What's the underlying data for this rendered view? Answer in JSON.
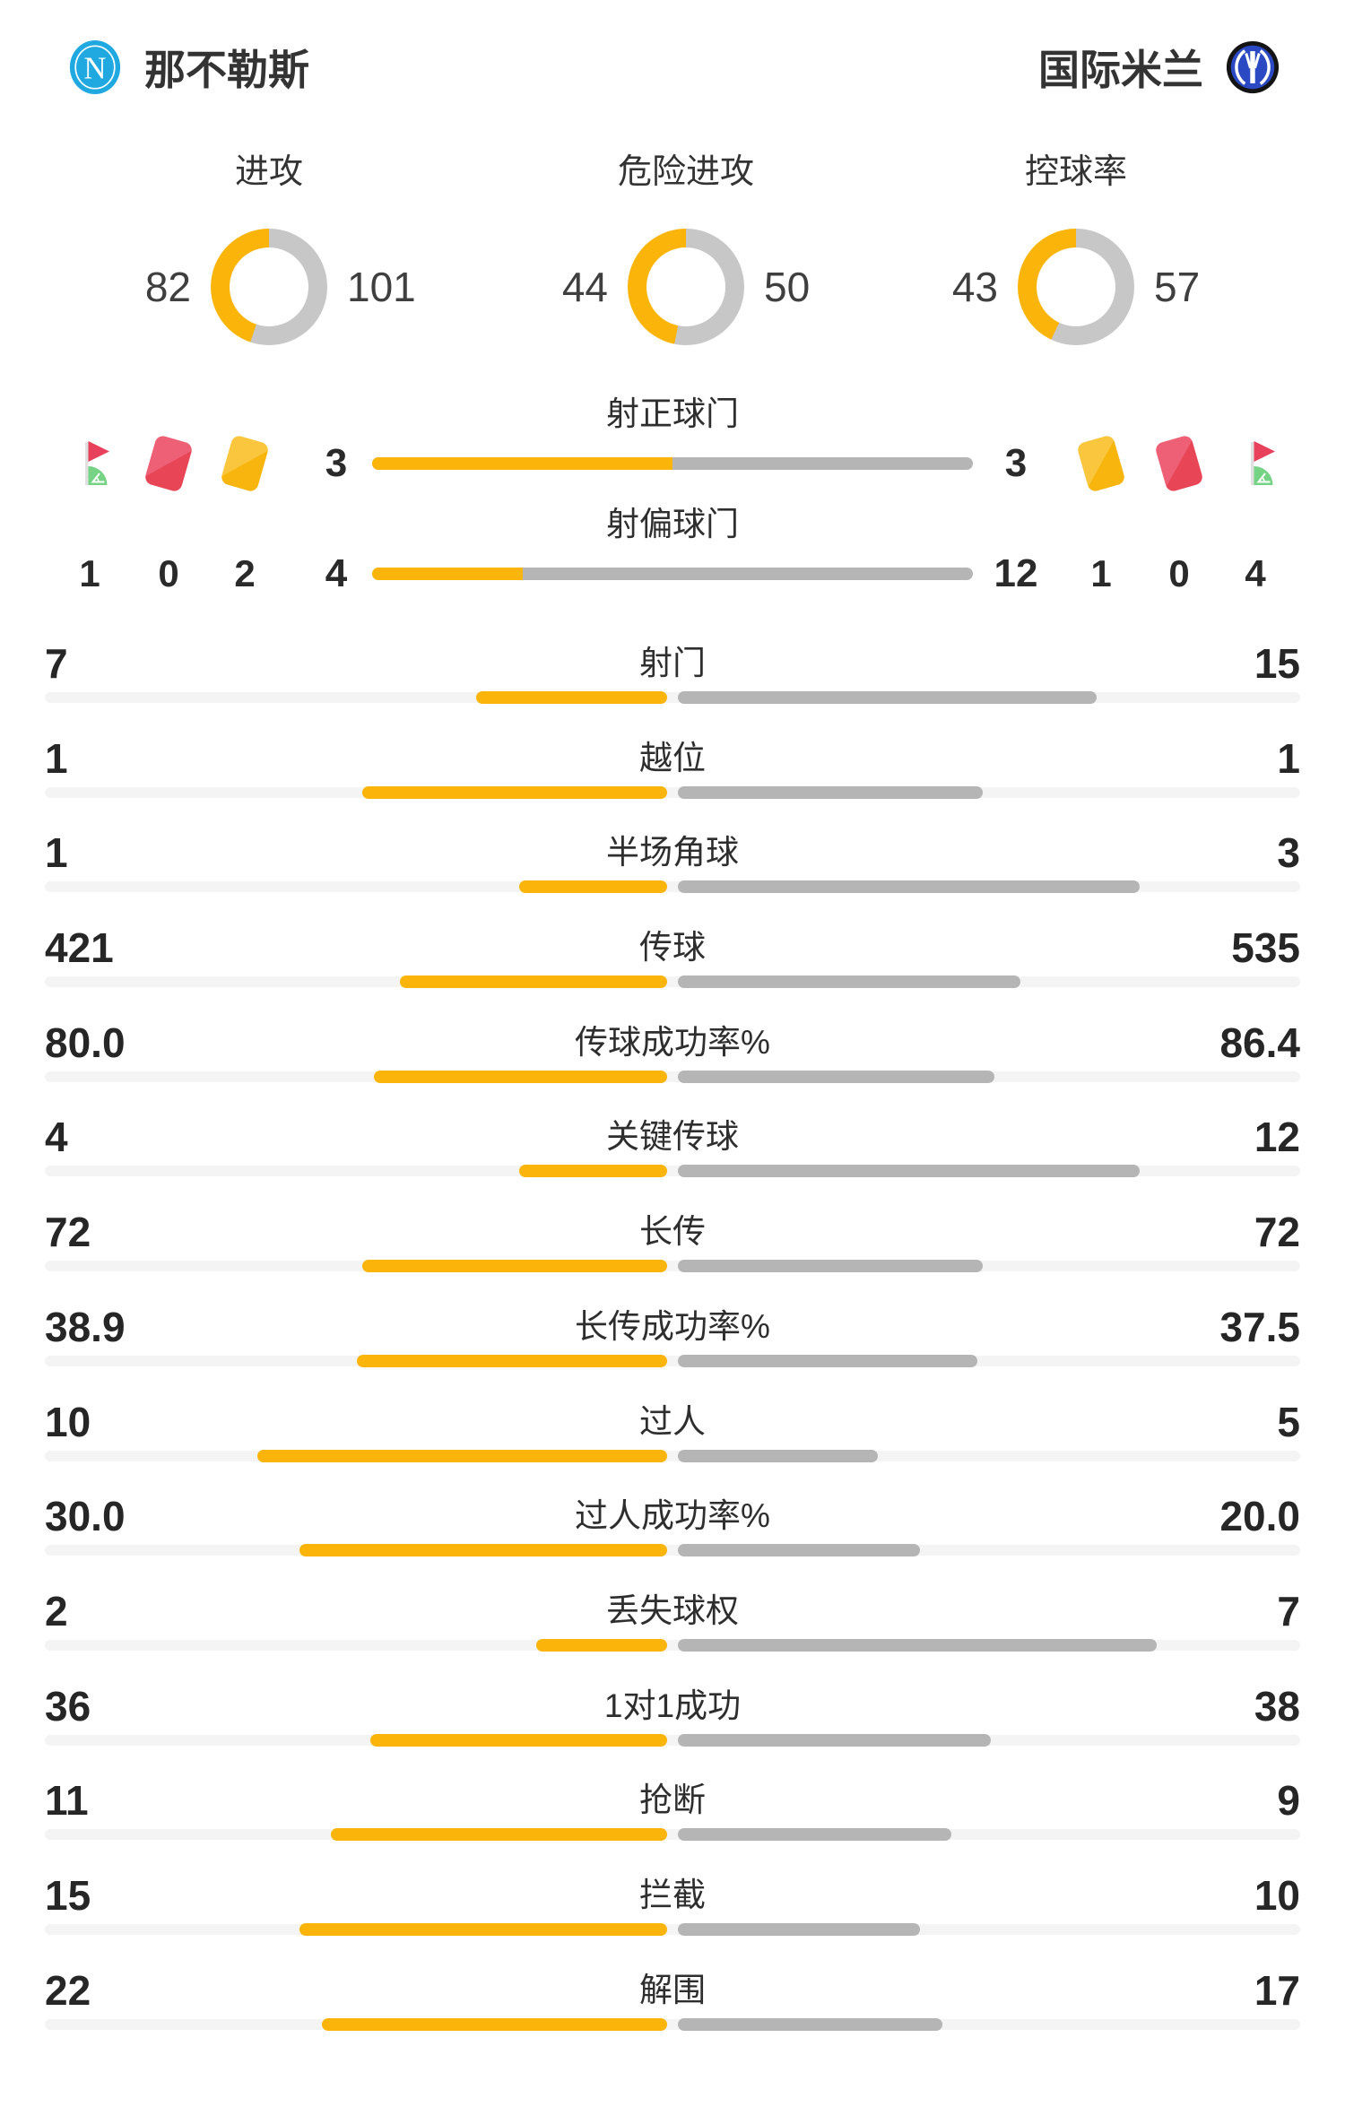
{
  "header": {
    "home_name": "那不勒斯",
    "away_name": "国际米兰"
  },
  "colors": {
    "home_yellow": "#FBB50A",
    "away_gray": "#B5B5B5",
    "track": "#F4F4F4",
    "donut_gray": "#C7C7C7",
    "red_card": "#E84556",
    "red_card_light": "#ED6076",
    "yellow_card": "#F7B50D",
    "yellow_card_light": "#FAC63D",
    "flag_red": "#E8415C",
    "flag_green": "#76D385",
    "napoli_blue": "#1FA9E0",
    "inter_blue": "#2A49C2"
  },
  "discipline": {
    "home": {
      "corner": 1,
      "red": 0,
      "yellow": 2
    },
    "away": {
      "yellow": 1,
      "red": 0,
      "corner": 4
    }
  },
  "chart_data": [
    {
      "type": "pie",
      "title": "进攻",
      "labels": [
        "home",
        "away"
      ],
      "values": [
        82,
        101
      ]
    },
    {
      "type": "pie",
      "title": "危险进攻",
      "labels": [
        "home",
        "away"
      ],
      "values": [
        44,
        50
      ]
    },
    {
      "type": "pie",
      "title": "控球率",
      "labels": [
        "home",
        "away"
      ],
      "values": [
        43,
        57
      ]
    },
    {
      "type": "bar",
      "categories": [
        "射正球门",
        "射偏球门"
      ],
      "series": [
        {
          "name": "home",
          "values": [
            3,
            4
          ]
        },
        {
          "name": "away",
          "values": [
            3,
            12
          ]
        }
      ]
    },
    {
      "type": "bar",
      "categories": [
        "射门",
        "越位",
        "半场角球",
        "传球",
        "传球成功率%",
        "关键传球",
        "长传",
        "长传成功率%",
        "过人",
        "过人成功率%",
        "丢失球权",
        "1对1成功",
        "抢断",
        "拦截",
        "解围"
      ],
      "series": [
        {
          "name": "home",
          "values": [
            "7",
            "1",
            "1",
            "421",
            "80.0",
            "4",
            "72",
            "38.9",
            "10",
            "30.0",
            "2",
            "36",
            "11",
            "15",
            "22"
          ]
        },
        {
          "name": "away",
          "values": [
            "15",
            "1",
            "3",
            "535",
            "86.4",
            "12",
            "72",
            "37.5",
            "5",
            "20.0",
            "7",
            "38",
            "9",
            "10",
            "17"
          ]
        }
      ]
    }
  ]
}
